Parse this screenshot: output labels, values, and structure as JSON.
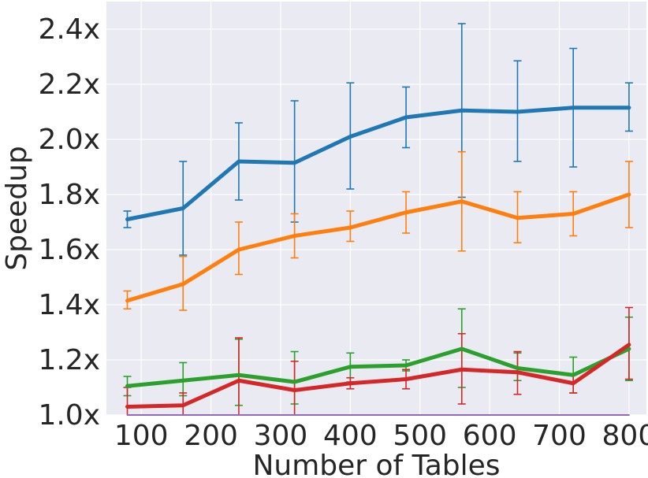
{
  "chart_data": {
    "type": "line",
    "xlabel": "Number of Tables",
    "ylabel": "Speedup",
    "xlim": [
      50,
      825
    ],
    "ylim": [
      1.0,
      2.5
    ],
    "x_ticks": [
      100,
      200,
      300,
      400,
      500,
      600,
      700,
      800
    ],
    "x_tick_labels": [
      "100",
      "200",
      "300",
      "400",
      "500",
      "600",
      "700",
      "800"
    ],
    "y_ticks": [
      1.0,
      1.2,
      1.4,
      1.6,
      1.8,
      2.0,
      2.2,
      2.4
    ],
    "y_tick_labels": [
      "1.0x",
      "1.2x",
      "1.4x",
      "1.6x",
      "1.8x",
      "2.0x",
      "2.2x",
      "2.4x"
    ],
    "grid": true,
    "background_color": "#eaeaf2",
    "x": [
      80,
      160,
      240,
      320,
      400,
      480,
      560,
      640,
      720,
      800
    ],
    "series": [
      {
        "color": "#1f77b4",
        "values": [
          1.71,
          1.75,
          1.92,
          1.915,
          2.01,
          2.08,
          2.105,
          2.1,
          2.115,
          2.115
        ],
        "err_low": [
          1.68,
          1.58,
          1.78,
          1.7,
          1.82,
          1.97,
          1.79,
          1.92,
          1.9,
          2.03
        ],
        "err_high": [
          1.74,
          1.92,
          2.06,
          2.14,
          2.205,
          2.19,
          2.42,
          2.285,
          2.33,
          2.205
        ]
      },
      {
        "color": "#ff7f0e",
        "values": [
          1.415,
          1.475,
          1.6,
          1.65,
          1.68,
          1.735,
          1.775,
          1.715,
          1.73,
          1.8
        ],
        "err_low": [
          1.385,
          1.38,
          1.51,
          1.57,
          1.63,
          1.66,
          1.595,
          1.625,
          1.65,
          1.68
        ],
        "err_high": [
          1.45,
          1.575,
          1.7,
          1.73,
          1.74,
          1.81,
          1.955,
          1.81,
          1.81,
          1.92
        ]
      },
      {
        "color": "#2ca02c",
        "values": [
          1.105,
          1.125,
          1.145,
          1.12,
          1.175,
          1.18,
          1.24,
          1.17,
          1.145,
          1.24
        ],
        "err_low": [
          1.07,
          1.07,
          1.035,
          1.04,
          1.12,
          1.16,
          1.1,
          1.125,
          1.08,
          1.125
        ],
        "err_high": [
          1.14,
          1.19,
          1.275,
          1.23,
          1.225,
          1.2,
          1.385,
          1.225,
          1.21,
          1.355
        ]
      },
      {
        "color": "#d62728",
        "values": [
          1.03,
          1.035,
          1.125,
          1.09,
          1.115,
          1.13,
          1.165,
          1.155,
          1.115,
          1.255
        ],
        "err_low": [
          0.96,
          0.99,
          0.97,
          0.985,
          1.095,
          1.095,
          1.04,
          1.075,
          1.08,
          1.13
        ],
        "err_high": [
          1.1,
          1.08,
          1.28,
          1.195,
          1.135,
          1.165,
          1.295,
          1.23,
          1.15,
          1.39
        ]
      },
      {
        "color": "#9467bd",
        "values": [
          1.0,
          1.0,
          1.0,
          1.0,
          1.0,
          1.0,
          1.0,
          1.0,
          1.0,
          1.0
        ]
      }
    ]
  }
}
